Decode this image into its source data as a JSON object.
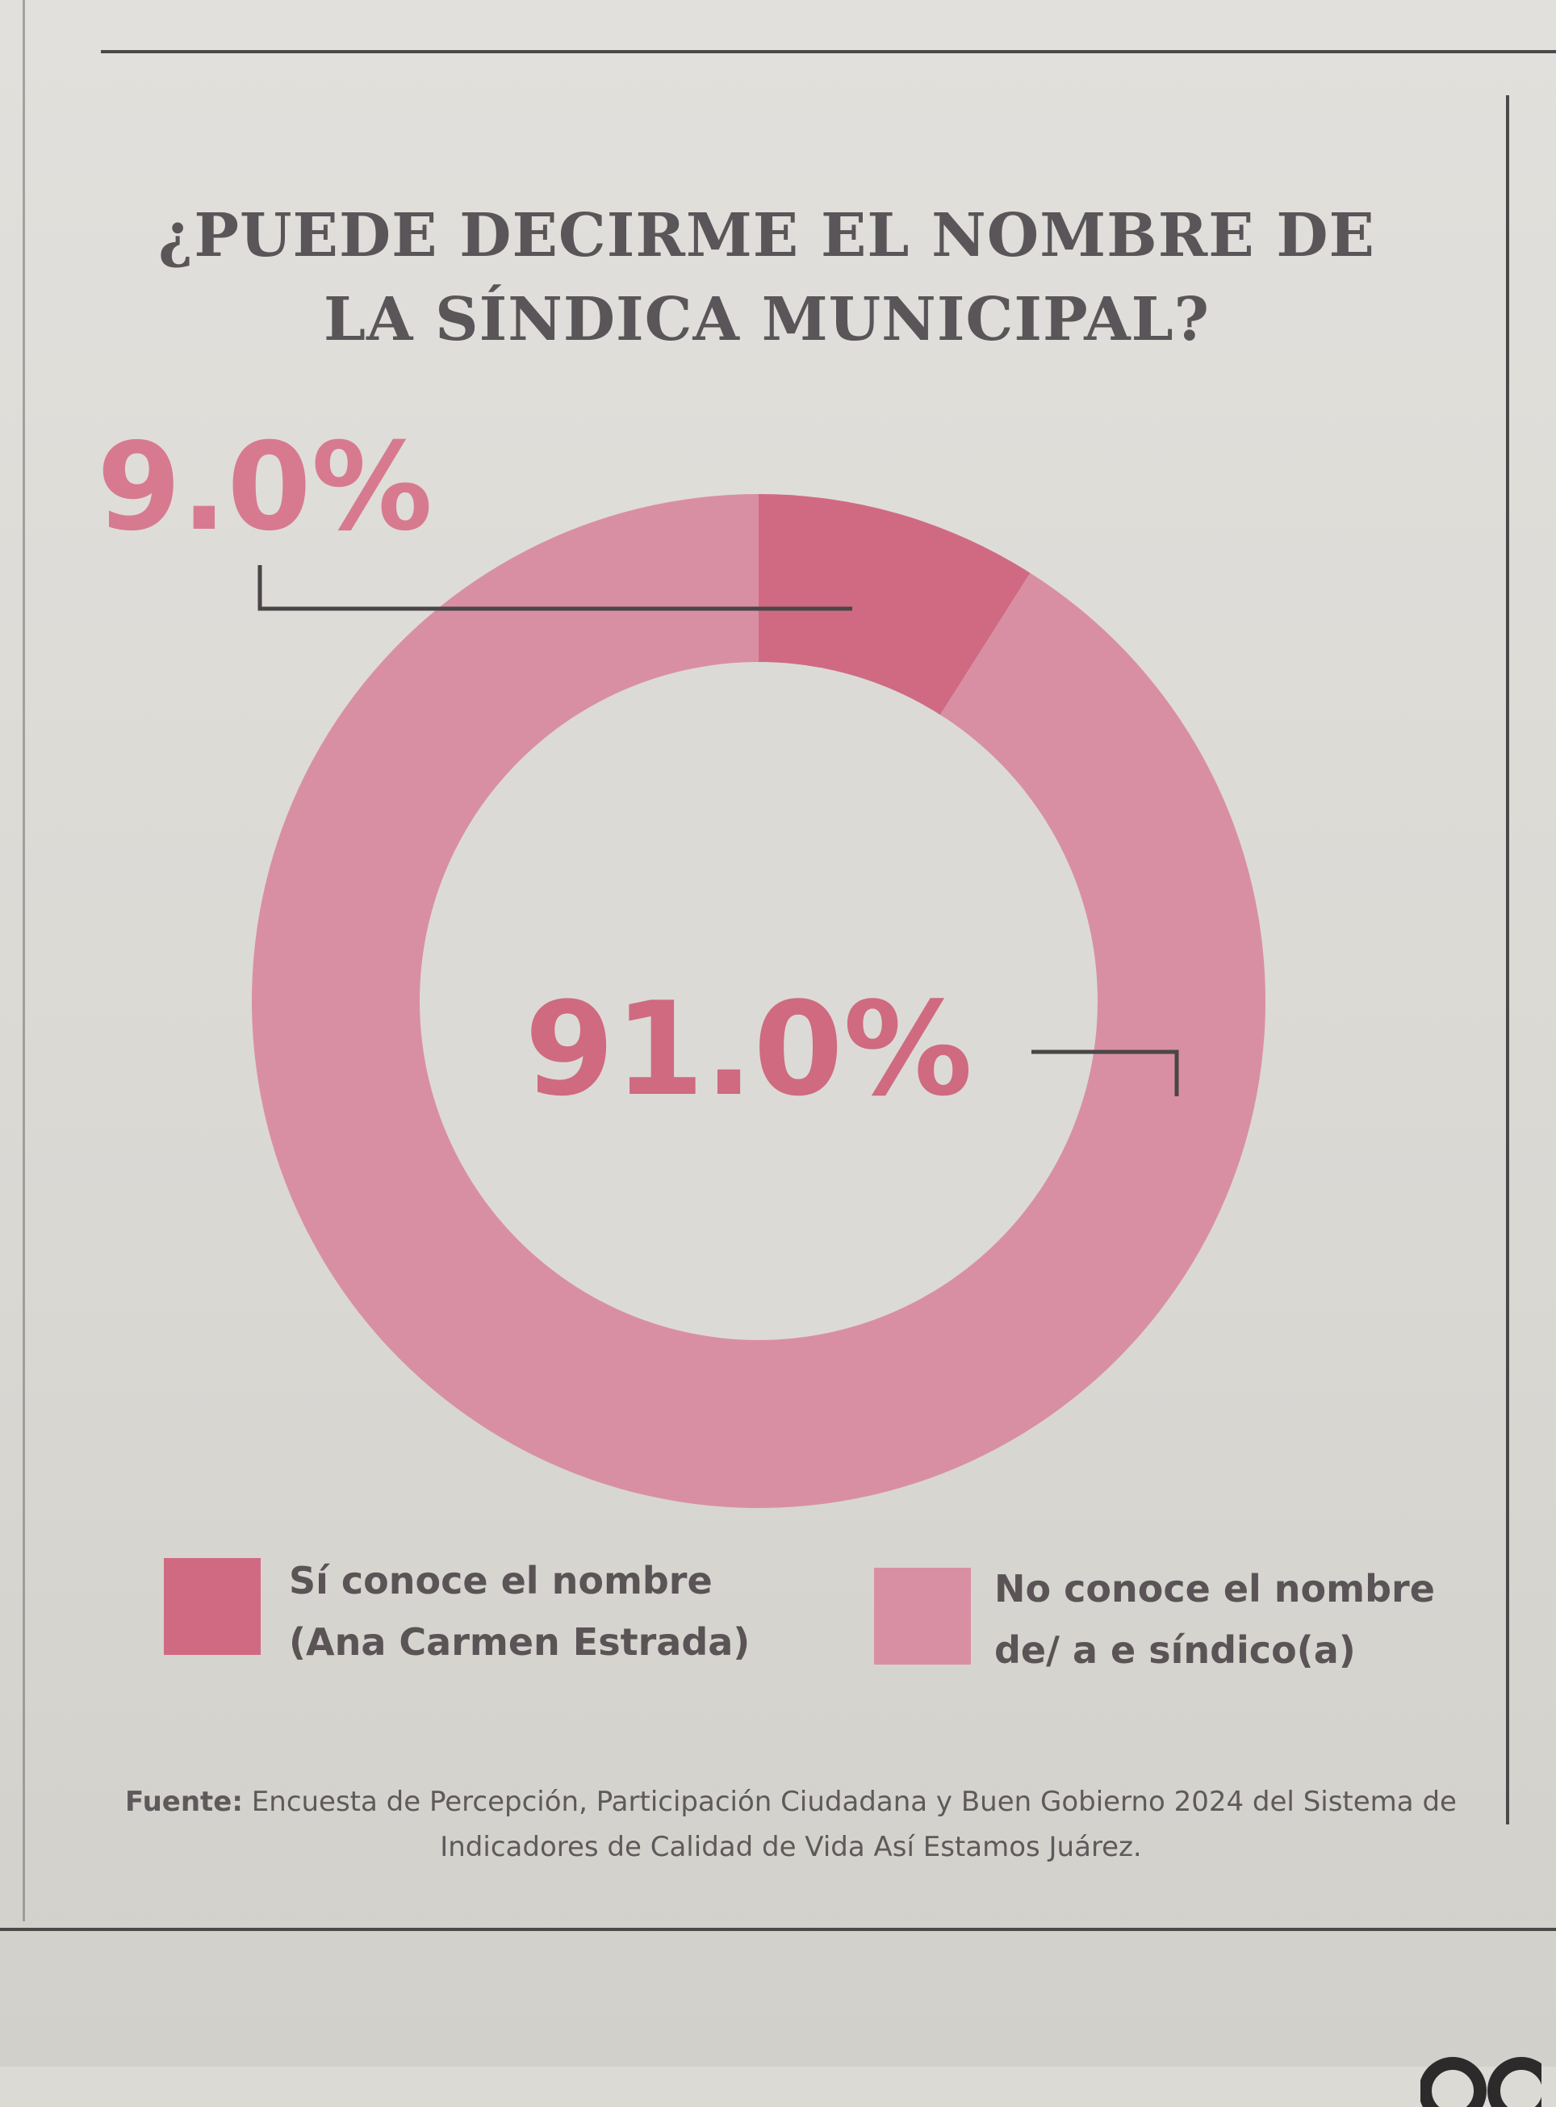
{
  "chart_data": {
    "type": "pie",
    "title_lines": [
      "¿PUEDE DECIRME EL NOMBRE DE",
      "LA SÍNDICA MUNICIPAL?"
    ],
    "unit": "%",
    "slices": [
      {
        "label_lines": [
          "Sí conoce el nombre",
          "(Ana Carmen Estrada)"
        ],
        "value": 9.0,
        "display": "9.0%",
        "color": "#d06a82"
      },
      {
        "label_lines": [
          "No conoce el nombre",
          "de/ a e  síndico(a)"
        ],
        "value": 91.0,
        "display": "91.0%",
        "color": "#d98fa3"
      }
    ],
    "source_label": "Fuente:",
    "source_text": "Encuesta de Percepción, Participación Ciudadana y Buen Gobierno 2024 del Sistema de Indicadores de Calidad de Vida Así Estamos Juárez.",
    "hole_color": "#dcdad6"
  }
}
